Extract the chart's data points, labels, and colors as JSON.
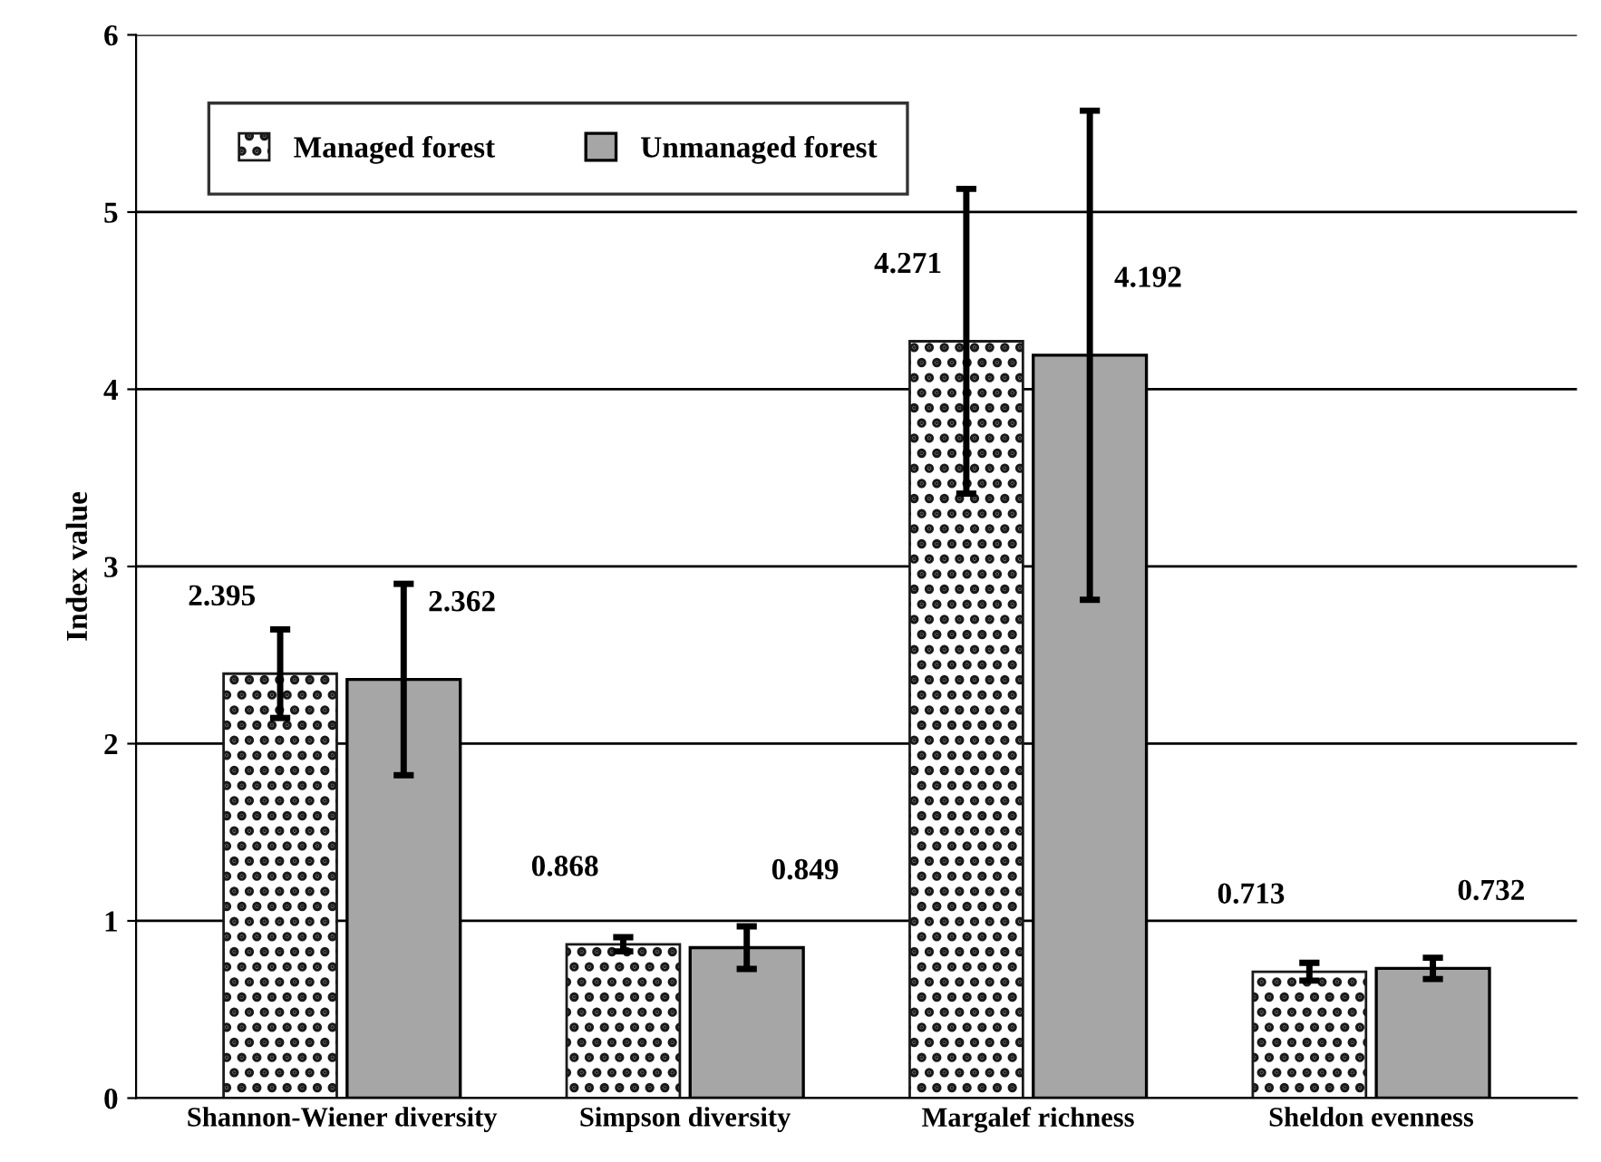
{
  "chart_data": {
    "type": "bar",
    "ylabel": "Index value",
    "categories": [
      "Shannon-Wiener diversity",
      "Simpson diversity",
      "Margalef richness",
      "Sheldon evenness"
    ],
    "series": [
      {
        "name": "Managed forest",
        "color": "#1a1a1a",
        "values": [
          2.395,
          0.868,
          4.271,
          0.713
        ],
        "errors": [
          0.25,
          0.04,
          0.86,
          0.05
        ]
      },
      {
        "name": "Unmanaged forest",
        "color": "#a6a6a6",
        "values": [
          2.362,
          0.849,
          4.192,
          0.732
        ],
        "errors": [
          0.54,
          0.12,
          1.38,
          0.06
        ]
      }
    ],
    "ylim": [
      0,
      6
    ],
    "yticks": [
      0,
      1,
      2,
      3,
      4,
      5,
      6
    ],
    "grid": "y",
    "legend": "top left",
    "data_labels": true
  }
}
